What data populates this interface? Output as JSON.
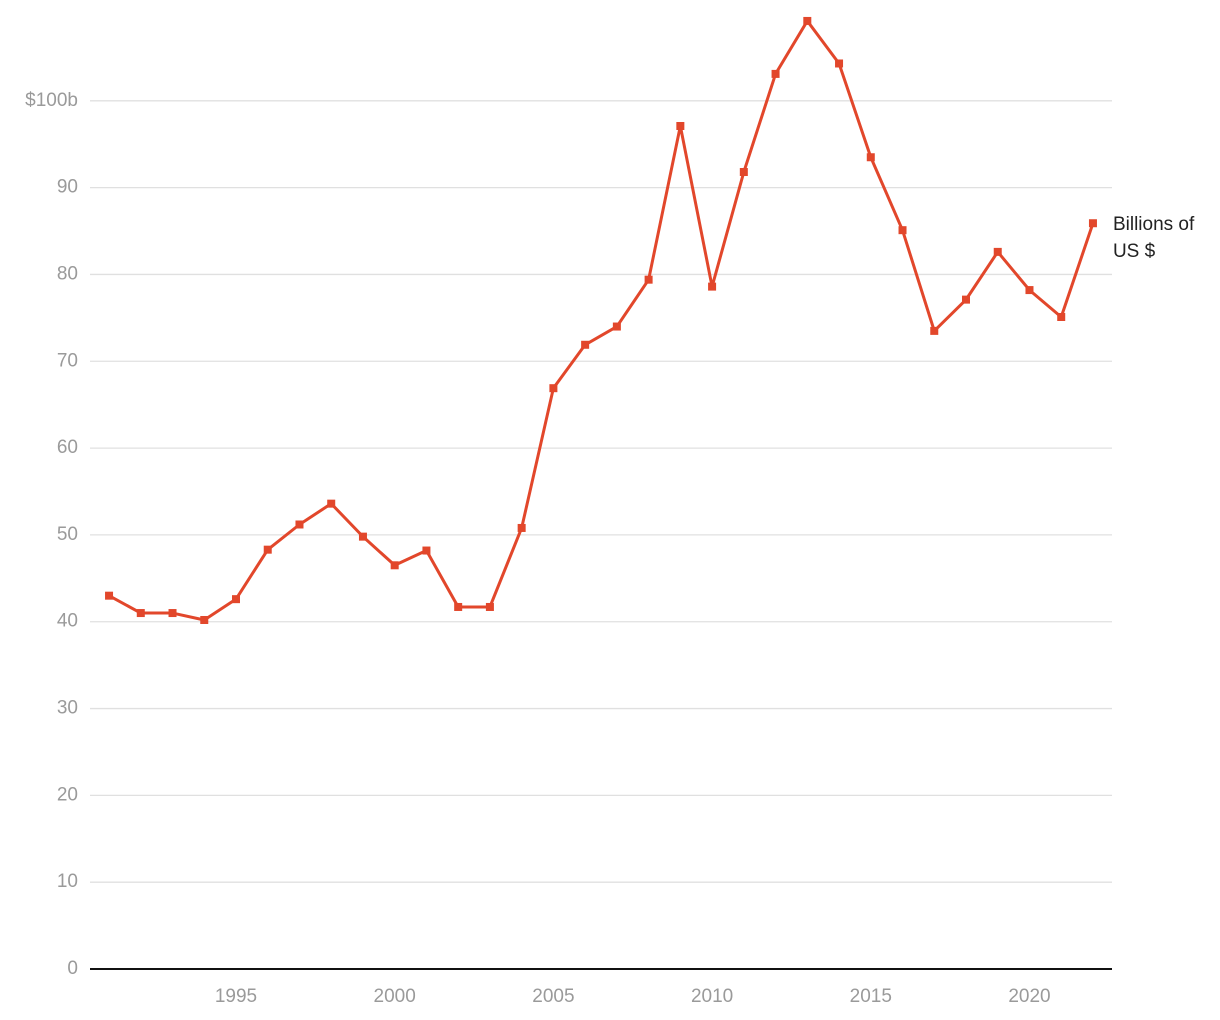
{
  "chart_data": {
    "type": "line",
    "x": [
      1991,
      1992,
      1993,
      1994,
      1995,
      1996,
      1997,
      1998,
      1999,
      2000,
      2001,
      2002,
      2003,
      2004,
      2005,
      2006,
      2007,
      2008,
      2009,
      2010,
      2011,
      2012,
      2013,
      2014,
      2015,
      2016,
      2017,
      2018,
      2019,
      2020,
      2021,
      2022
    ],
    "series": [
      {
        "name": "Billions of US $",
        "color": "#e2472b",
        "values": [
          43.0,
          41.0,
          41.0,
          40.2,
          42.6,
          48.3,
          51.2,
          53.6,
          49.8,
          46.5,
          48.2,
          41.7,
          41.7,
          50.8,
          66.9,
          71.9,
          74.0,
          79.4,
          97.1,
          78.6,
          91.8,
          103.1,
          109.2,
          104.3,
          93.5,
          85.1,
          73.5,
          77.1,
          82.6,
          78.2,
          75.1,
          85.9
        ]
      }
    ],
    "xlim": [
      1990.4,
      2022.6
    ],
    "xticks": [
      1995,
      2000,
      2005,
      2010,
      2015,
      2020
    ],
    "ylim": [
      0,
      110
    ],
    "yticks": [
      0,
      10,
      20,
      30,
      40,
      50,
      60,
      70,
      80,
      90,
      {
        "value": 100,
        "label": "$100b"
      }
    ],
    "grid": true
  }
}
